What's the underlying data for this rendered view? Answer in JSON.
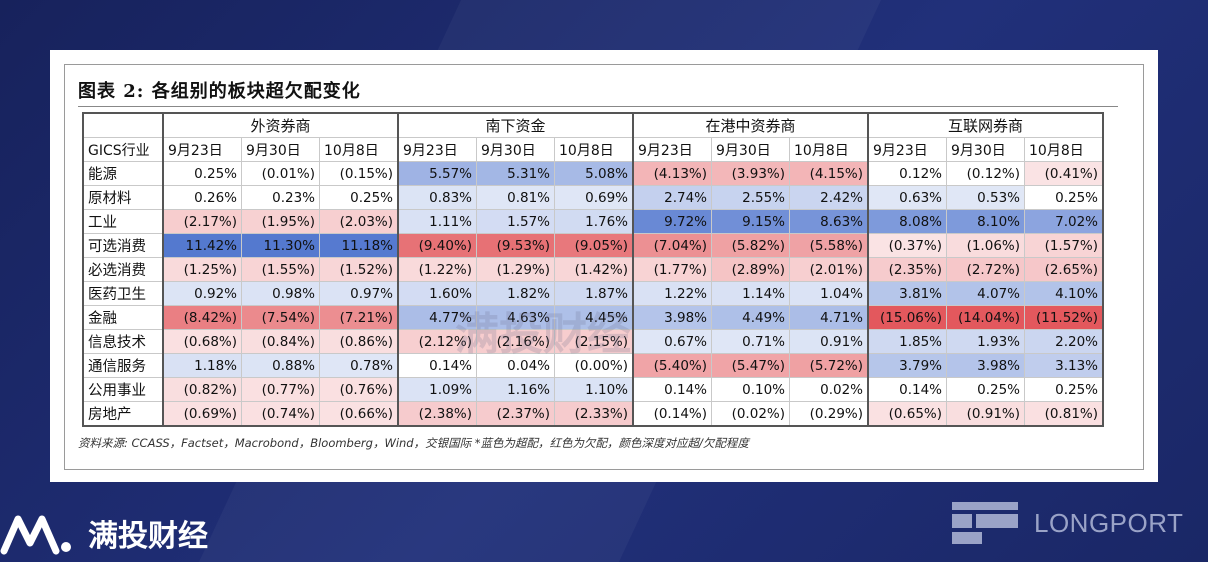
{
  "title": "图表 2: 各组别的板块超欠配变化",
  "source_note": "资料来源: CCASS，Factset，Macrobond，Bloomberg，Wind，交银国际  *蓝色为超配，红色为欠配，颜色深度对应超/欠配程度",
  "watermark": "满投财经",
  "brand": {
    "name": "满投财经",
    "partner": "LONGPORT"
  },
  "colors": {
    "overweight": "#3f68c9",
    "underweight": "#e0464b",
    "background": "#1d2a6b"
  },
  "table": {
    "groups": [
      "外资券商",
      "南下资金",
      "在港中资券商",
      "互联网券商"
    ],
    "row_header": "GICS行业",
    "dates": [
      "9月23日",
      "9月30日",
      "10月8日"
    ],
    "rows": [
      {
        "sector": "能源",
        "values": [
          "0.25%",
          "(0.01%)",
          "(0.15%)",
          "5.57%",
          "5.31%",
          "5.08%",
          "(4.13%)",
          "(3.93%)",
          "(4.15%)",
          "0.12%",
          "(0.12%)",
          "(0.41%)"
        ]
      },
      {
        "sector": "原材料",
        "values": [
          "0.26%",
          "0.23%",
          "0.25%",
          "0.83%",
          "0.81%",
          "0.69%",
          "2.74%",
          "2.55%",
          "2.42%",
          "0.63%",
          "0.53%",
          "0.25%"
        ]
      },
      {
        "sector": "工业",
        "values": [
          "(2.17%)",
          "(1.95%)",
          "(2.03%)",
          "1.11%",
          "1.57%",
          "1.76%",
          "9.72%",
          "9.15%",
          "8.63%",
          "8.08%",
          "8.10%",
          "7.02%"
        ]
      },
      {
        "sector": "可选消费",
        "values": [
          "11.42%",
          "11.30%",
          "11.18%",
          "(9.40%)",
          "(9.53%)",
          "(9.05%)",
          "(7.04%)",
          "(5.82%)",
          "(5.58%)",
          "(0.37%)",
          "(1.06%)",
          "(1.57%)"
        ]
      },
      {
        "sector": "必选消费",
        "values": [
          "(1.25%)",
          "(1.55%)",
          "(1.52%)",
          "(1.22%)",
          "(1.29%)",
          "(1.42%)",
          "(1.77%)",
          "(2.89%)",
          "(2.01%)",
          "(2.35%)",
          "(2.72%)",
          "(2.65%)"
        ]
      },
      {
        "sector": "医药卫生",
        "values": [
          "0.92%",
          "0.98%",
          "0.97%",
          "1.60%",
          "1.82%",
          "1.87%",
          "1.22%",
          "1.14%",
          "1.04%",
          "3.81%",
          "4.07%",
          "4.10%"
        ]
      },
      {
        "sector": "金融",
        "values": [
          "(8.42%)",
          "(7.54%)",
          "(7.21%)",
          "4.77%",
          "4.63%",
          "4.45%",
          "3.98%",
          "4.49%",
          "4.71%",
          "(15.06%)",
          "(14.04%)",
          "(11.52%)"
        ]
      },
      {
        "sector": "信息技术",
        "values": [
          "(0.68%)",
          "(0.84%)",
          "(0.86%)",
          "(2.12%)",
          "(2.16%)",
          "(2.15%)",
          "0.67%",
          "0.71%",
          "0.91%",
          "1.85%",
          "1.93%",
          "2.20%"
        ]
      },
      {
        "sector": "通信服务",
        "values": [
          "1.18%",
          "0.88%",
          "0.78%",
          "0.14%",
          "0.04%",
          "(0.00%)",
          "(5.40%)",
          "(5.47%)",
          "(5.72%)",
          "3.79%",
          "3.98%",
          "3.13%"
        ]
      },
      {
        "sector": "公用事业",
        "values": [
          "(0.82%)",
          "(0.77%)",
          "(0.76%)",
          "1.09%",
          "1.16%",
          "1.10%",
          "0.14%",
          "0.10%",
          "0.02%",
          "0.14%",
          "0.25%",
          "0.25%"
        ]
      },
      {
        "sector": "房地产",
        "values": [
          "(0.69%)",
          "(0.74%)",
          "(0.66%)",
          "(2.38%)",
          "(2.37%)",
          "(2.33%)",
          "(0.14%)",
          "(0.02%)",
          "(0.29%)",
          "(0.65%)",
          "(0.91%)",
          "(0.81%)"
        ]
      }
    ]
  }
}
